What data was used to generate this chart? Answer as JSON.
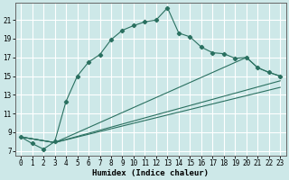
{
  "xlabel": "Humidex (Indice chaleur)",
  "bg_color": "#cde8e8",
  "grid_color": "#ffffff",
  "line_color": "#2a7060",
  "xlim": [
    -0.5,
    23.5
  ],
  "ylim": [
    6.5,
    22.8
  ],
  "yticks": [
    7,
    9,
    11,
    13,
    15,
    17,
    19,
    21
  ],
  "xticks": [
    0,
    1,
    2,
    3,
    4,
    5,
    6,
    7,
    8,
    9,
    10,
    11,
    12,
    13,
    14,
    15,
    16,
    17,
    18,
    19,
    20,
    21,
    22,
    23
  ],
  "line1_x": [
    0,
    1,
    2,
    3,
    4,
    5,
    6,
    7,
    8,
    9,
    10,
    11,
    12,
    13,
    14,
    15,
    16,
    17,
    18,
    19,
    20,
    21,
    22,
    23
  ],
  "line1_y": [
    8.5,
    7.8,
    7.2,
    8.0,
    12.3,
    15.0,
    16.5,
    17.3,
    18.9,
    19.9,
    20.4,
    20.8,
    21.0,
    22.3,
    19.6,
    19.2,
    18.1,
    17.5,
    17.4,
    16.9,
    17.0,
    15.9,
    15.4,
    15.0
  ],
  "line2_x": [
    0,
    3,
    20,
    21,
    22,
    23
  ],
  "line2_y": [
    8.5,
    7.9,
    17.0,
    15.9,
    15.4,
    15.0
  ],
  "line3_x": [
    0,
    3,
    23
  ],
  "line3_y": [
    8.5,
    7.9,
    14.5
  ],
  "line4_x": [
    0,
    3,
    23
  ],
  "line4_y": [
    8.5,
    7.9,
    13.8
  ]
}
